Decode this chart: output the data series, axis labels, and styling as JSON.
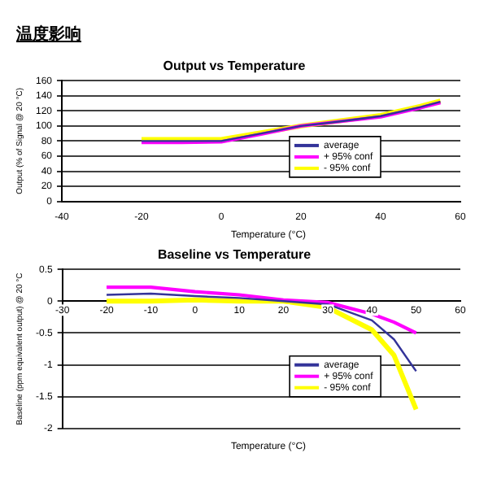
{
  "chart_data": [
    {
      "type": "line",
      "title": "Output vs Temperature",
      "annotations": [
        "温度影响"
      ],
      "xlabel": "Temperature (°C)",
      "ylabel": "Output (% of Signal @ 20 °C)",
      "xlim": [
        -40,
        60
      ],
      "xticks": [
        -40,
        -20,
        0,
        20,
        40,
        60
      ],
      "ylim": [
        0,
        160
      ],
      "yticks": [
        0,
        20,
        40,
        60,
        80,
        100,
        120,
        140,
        160
      ],
      "grid": "y",
      "legend": "bottom right",
      "marker": "none",
      "series": [
        {
          "name": "average",
          "color": "#333399",
          "x": [
            -20,
            -10,
            0,
            10,
            20,
            30,
            40,
            50,
            55
          ],
          "values": [
            80,
            80,
            80,
            90,
            100,
            106,
            113,
            125,
            132
          ]
        },
        {
          "name": "+ 95% conf",
          "color": "#ff00ff",
          "x": [
            -20,
            -10,
            0,
            10,
            20,
            30,
            40,
            50,
            55
          ],
          "values": [
            78,
            78,
            79,
            89,
            100,
            106,
            112,
            124,
            131
          ]
        },
        {
          "name": "- 95% conf",
          "color": "#ffff00",
          "x": [
            -20,
            -10,
            0,
            10,
            20,
            30,
            40,
            50,
            55
          ],
          "values": [
            82,
            82,
            82,
            91,
            100,
            107,
            114,
            126,
            133
          ]
        }
      ]
    },
    {
      "type": "line",
      "title": "Baseline vs Temperature",
      "xlabel": "Temperature (°C)",
      "ylabel": "Baseline (ppm equivalent output) @ 20 °C",
      "xlim": [
        -30,
        60
      ],
      "xticks": [
        -30,
        -20,
        -10,
        0,
        10,
        20,
        30,
        40,
        50,
        60
      ],
      "ylim": [
        -2,
        0.5
      ],
      "yticks": [
        -2,
        -1.5,
        -1,
        -0.5,
        0,
        0.5
      ],
      "grid": "y",
      "legend": "bottom right",
      "marker": "none",
      "series": [
        {
          "name": "average",
          "color": "#333399",
          "x": [
            -20,
            -10,
            0,
            10,
            20,
            30,
            40,
            45,
            50
          ],
          "values": [
            0.1,
            0.12,
            0.08,
            0.05,
            0,
            -0.05,
            -0.3,
            -0.6,
            -1.1
          ]
        },
        {
          "name": "+ 95% conf",
          "color": "#ff00ff",
          "x": [
            -20,
            -10,
            0,
            10,
            20,
            30,
            40,
            45,
            50
          ],
          "values": [
            0.22,
            0.22,
            0.15,
            0.1,
            0.02,
            -0.02,
            -0.2,
            -0.33,
            -0.5
          ]
        },
        {
          "name": "- 95% conf",
          "color": "#ffff00",
          "x": [
            -20,
            -10,
            0,
            10,
            20,
            30,
            40,
            45,
            50
          ],
          "values": [
            0,
            0,
            0.02,
            0,
            0,
            -0.1,
            -0.45,
            -0.85,
            -1.7
          ]
        }
      ]
    }
  ]
}
